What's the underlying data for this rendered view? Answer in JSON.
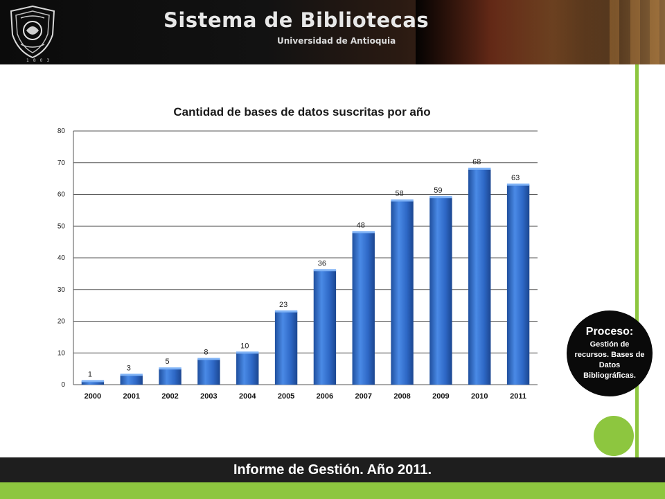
{
  "header": {
    "title": "Sistema de Bibliotecas",
    "subtitle": "Universidad de Antioquia",
    "seal_year": "1803"
  },
  "process": {
    "label": "Proceso:",
    "text": "Gestión de recursos. Bases de Datos Bibliográficas."
  },
  "footer": {
    "text": "Informe de Gestión. Año 2011."
  },
  "colors": {
    "accent_green": "#8dc63f",
    "bar_blue": "#2f6fd0",
    "footer_dark": "#1e1e1e"
  },
  "chart_data": {
    "type": "bar",
    "title": "Cantidad de bases de datos suscritas por año",
    "xlabel": "",
    "ylabel": "",
    "categories": [
      "2000",
      "2001",
      "2002",
      "2003",
      "2004",
      "2005",
      "2006",
      "2007",
      "2008",
      "2009",
      "2010",
      "2011"
    ],
    "values": [
      1,
      3,
      5,
      8,
      10,
      23,
      36,
      48,
      58,
      59,
      68,
      63
    ],
    "ylim": [
      0,
      80
    ],
    "yticks": [
      0,
      10,
      20,
      30,
      40,
      50,
      60,
      70,
      80
    ],
    "grid": true,
    "legend": "none",
    "data_labels": true
  }
}
